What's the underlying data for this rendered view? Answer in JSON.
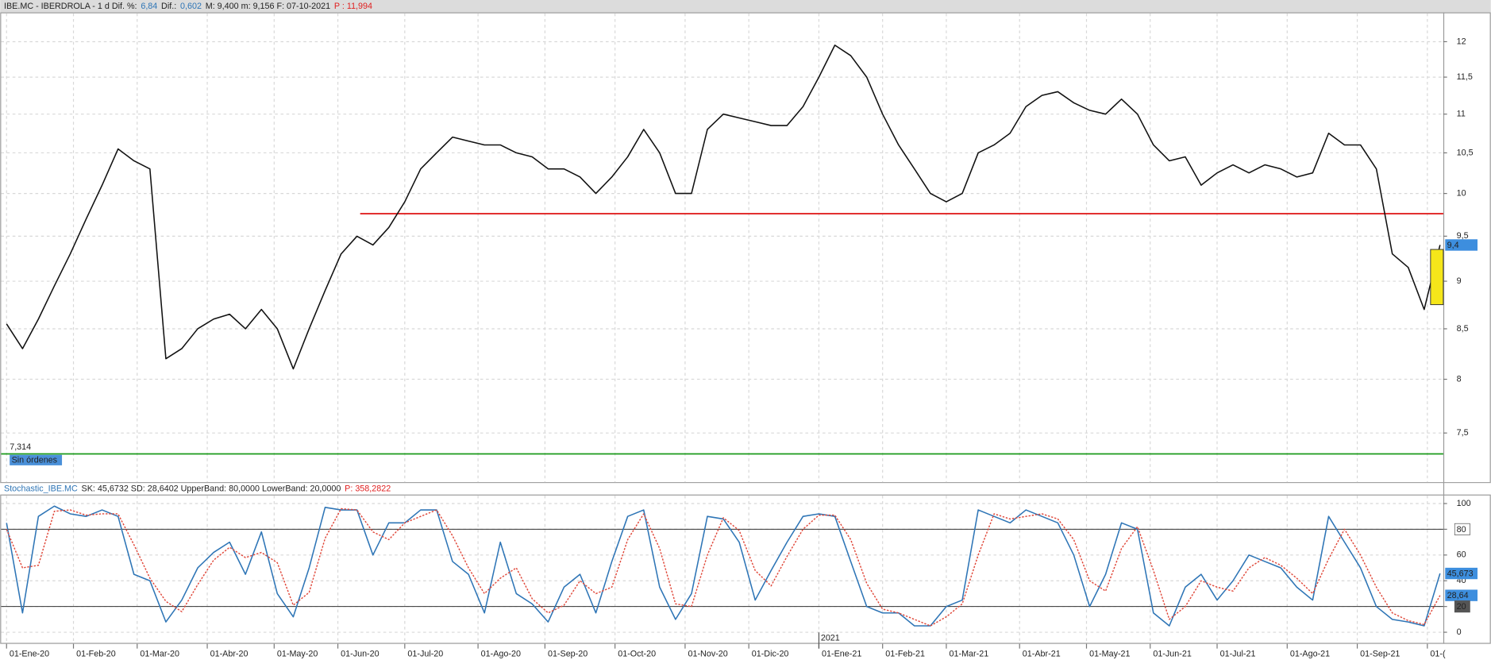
{
  "chart_data": [
    {
      "type": "line",
      "header": [
        {
          "text": "IBE.MC - IBERDROLA -  1 d  Dif. %:",
          "color": "#222222"
        },
        {
          "text": "6,84",
          "color": "#2e75b6"
        },
        {
          "text": "Dif.:",
          "color": "#222222"
        },
        {
          "text": "0,602",
          "color": "#2e75b6"
        },
        {
          "text": "M: 9,400  m: 9,156  F: 07-10-2021",
          "color": "#222222"
        },
        {
          "text": "P : 11,994",
          "color": "#e02020"
        }
      ],
      "log_scale": true,
      "grid": true,
      "xlim": [
        -2,
        451
      ],
      "ylim": [
        7.07,
        12.43
      ],
      "yticks": [
        {
          "value": 7.5,
          "label": "7,5"
        },
        8,
        {
          "value": 8.5,
          "label": "8,5"
        },
        9,
        {
          "value": 9.5,
          "label": "9,5"
        },
        10,
        {
          "value": 10.5,
          "label": "10,5"
        },
        11,
        {
          "value": 11.5,
          "label": "11,5"
        },
        12
      ],
      "x": [
        0,
        5,
        10,
        15,
        20,
        25,
        30,
        35,
        40,
        45,
        50,
        55,
        60,
        65,
        70,
        75,
        80,
        85,
        90,
        95,
        100,
        105,
        110,
        115,
        120,
        125,
        130,
        135,
        140,
        145,
        150,
        155,
        160,
        165,
        170,
        175,
        180,
        185,
        190,
        195,
        200,
        205,
        210,
        215,
        220,
        225,
        230,
        235,
        240,
        245,
        250,
        255,
        260,
        265,
        270,
        275,
        280,
        285,
        290,
        295,
        300,
        305,
        310,
        315,
        320,
        325,
        330,
        335,
        340,
        345,
        350,
        355,
        360,
        365,
        370,
        375,
        380,
        385,
        390,
        395,
        400,
        405,
        410,
        415,
        420,
        425,
        430,
        435,
        440,
        445,
        450
      ],
      "series": [
        {
          "color": "#111111",
          "values": [
            8.55,
            8.3,
            8.6,
            8.95,
            9.3,
            9.7,
            10.1,
            10.55,
            10.4,
            10.3,
            8.2,
            8.3,
            8.5,
            8.6,
            8.65,
            8.5,
            8.7,
            8.5,
            8.1,
            8.5,
            8.9,
            9.3,
            9.5,
            9.4,
            9.6,
            9.9,
            10.3,
            10.5,
            10.7,
            10.65,
            10.6,
            10.6,
            10.5,
            10.45,
            10.3,
            10.3,
            10.2,
            10.0,
            10.2,
            10.45,
            10.8,
            10.5,
            10.0,
            10.0,
            10.8,
            11.0,
            10.95,
            10.9,
            10.85,
            10.85,
            11.1,
            11.5,
            11.95,
            11.8,
            11.5,
            11.0,
            10.6,
            10.3,
            10.0,
            9.9,
            10.0,
            10.5,
            10.6,
            10.75,
            11.1,
            11.25,
            11.3,
            11.15,
            11.05,
            11.0,
            11.2,
            11.0,
            10.6,
            10.4,
            10.45,
            10.1,
            10.25,
            10.35,
            10.25,
            10.35,
            10.3,
            10.2,
            10.25,
            10.75,
            10.6,
            10.6,
            10.3,
            9.3,
            9.15,
            8.7,
            9.4
          ]
        }
      ],
      "support_line": {
        "value": 9.76,
        "x_start": 111,
        "color": "#e02020"
      },
      "floor_line": {
        "value": 7.314,
        "label": "7,314",
        "color": "#1a9a1a",
        "tag": "Sin órdenes"
      },
      "highlight_box": {
        "x": [
          447,
          451
        ],
        "y": [
          8.75,
          9.35
        ],
        "color": "#f5e61a"
      },
      "last_price": {
        "value": 9.4,
        "label": "9,4"
      }
    },
    {
      "type": "line",
      "header": [
        {
          "text": "Stochastic_IBE.MC",
          "color": "#2e75b6"
        },
        {
          "text": "SK: 45,6732  SD: 28,6402  UpperBand: 80,0000  LowerBand: 20,0000",
          "color": "#222222"
        },
        {
          "text": "P: 358,2822",
          "color": "#e02020"
        }
      ],
      "grid": true,
      "xlim": [
        -2,
        451
      ],
      "ylim": [
        -9,
        107
      ],
      "yticks": [
        0,
        20,
        40,
        60,
        80,
        100
      ],
      "bands": [
        80,
        20
      ],
      "xticks": [
        {
          "value": 0,
          "label": "01-Ene-20"
        },
        {
          "value": 21,
          "label": "01-Feb-20"
        },
        {
          "value": 41,
          "label": "01-Mar-20"
        },
        {
          "value": 63,
          "label": "01-Abr-20"
        },
        {
          "value": 84,
          "label": "01-May-20"
        },
        {
          "value": 104,
          "label": "01-Jun-20"
        },
        {
          "value": 125,
          "label": "01-Jul-20"
        },
        {
          "value": 148,
          "label": "01-Ago-20"
        },
        {
          "value": 169,
          "label": "01-Sep-20"
        },
        {
          "value": 191,
          "label": "01-Oct-20"
        },
        {
          "value": 213,
          "label": "01-Nov-20"
        },
        {
          "value": 233,
          "label": "01-Dic-20"
        },
        {
          "value": 255,
          "label": "01-Ene-21"
        },
        {
          "value": 275,
          "label": "01-Feb-21"
        },
        {
          "value": 295,
          "label": "01-Mar-21"
        },
        {
          "value": 318,
          "label": "01-Abr-21"
        },
        {
          "value": 339,
          "label": "01-May-21"
        },
        {
          "value": 359,
          "label": "01-Jun-21"
        },
        {
          "value": 380,
          "label": "01-Jul-21"
        },
        {
          "value": 402,
          "label": "01-Ago-21"
        },
        {
          "value": 424,
          "label": "01-Sep-21"
        },
        {
          "value": 446,
          "label": "01-("
        }
      ],
      "year_marker": {
        "value": 255,
        "label": "2021"
      },
      "x": [
        0,
        5,
        10,
        15,
        20,
        25,
        30,
        35,
        40,
        45,
        50,
        55,
        60,
        65,
        70,
        75,
        80,
        85,
        90,
        95,
        100,
        105,
        110,
        115,
        120,
        125,
        130,
        135,
        140,
        145,
        150,
        155,
        160,
        165,
        170,
        175,
        180,
        185,
        190,
        195,
        200,
        205,
        210,
        215,
        220,
        225,
        230,
        235,
        240,
        245,
        250,
        255,
        260,
        265,
        270,
        275,
        280,
        285,
        290,
        295,
        300,
        305,
        310,
        315,
        320,
        325,
        330,
        335,
        340,
        345,
        350,
        355,
        360,
        365,
        370,
        375,
        380,
        385,
        390,
        395,
        400,
        405,
        410,
        415,
        420,
        425,
        430,
        435,
        440,
        445,
        450
      ],
      "series": [
        {
          "name": "SK",
          "color": "#2e75b6",
          "values": [
            85,
            15,
            90,
            98,
            92,
            90,
            95,
            90,
            45,
            40,
            8,
            25,
            50,
            62,
            70,
            45,
            78,
            30,
            12,
            50,
            97,
            95,
            95,
            60,
            85,
            85,
            95,
            95,
            55,
            45,
            15,
            70,
            30,
            22,
            8,
            35,
            45,
            15,
            55,
            90,
            95,
            35,
            10,
            30,
            90,
            88,
            70,
            25,
            48,
            70,
            90,
            92,
            90,
            55,
            20,
            15,
            15,
            5,
            5,
            20,
            25,
            95,
            90,
            85,
            95,
            90,
            85,
            60,
            20,
            45,
            85,
            80,
            15,
            5,
            35,
            45,
            25,
            40,
            60,
            55,
            50,
            35,
            25,
            90,
            70,
            50,
            20,
            10,
            8,
            5,
            45.6732
          ],
          "last_label": "45,673"
        },
        {
          "name": "SD",
          "color": "#e0483a",
          "values": [
            80,
            50,
            52,
            94,
            95,
            91,
            92,
            92,
            68,
            42,
            24,
            16,
            37,
            56,
            66,
            58,
            62,
            54,
            21,
            31,
            73,
            96,
            95,
            78,
            72,
            85,
            90,
            95,
            75,
            50,
            30,
            42,
            50,
            26,
            15,
            21,
            40,
            30,
            35,
            72,
            92,
            65,
            22,
            20,
            60,
            89,
            79,
            48,
            36,
            59,
            80,
            91,
            91,
            72,
            38,
            18,
            15,
            10,
            5,
            12,
            22,
            60,
            92,
            88,
            90,
            92,
            88,
            72,
            40,
            32,
            65,
            82,
            48,
            10,
            20,
            40,
            35,
            32,
            50,
            58,
            52,
            42,
            30,
            57,
            80,
            60,
            35,
            15,
            9,
            6,
            28.6402
          ],
          "last_label": "28,64"
        }
      ]
    }
  ]
}
